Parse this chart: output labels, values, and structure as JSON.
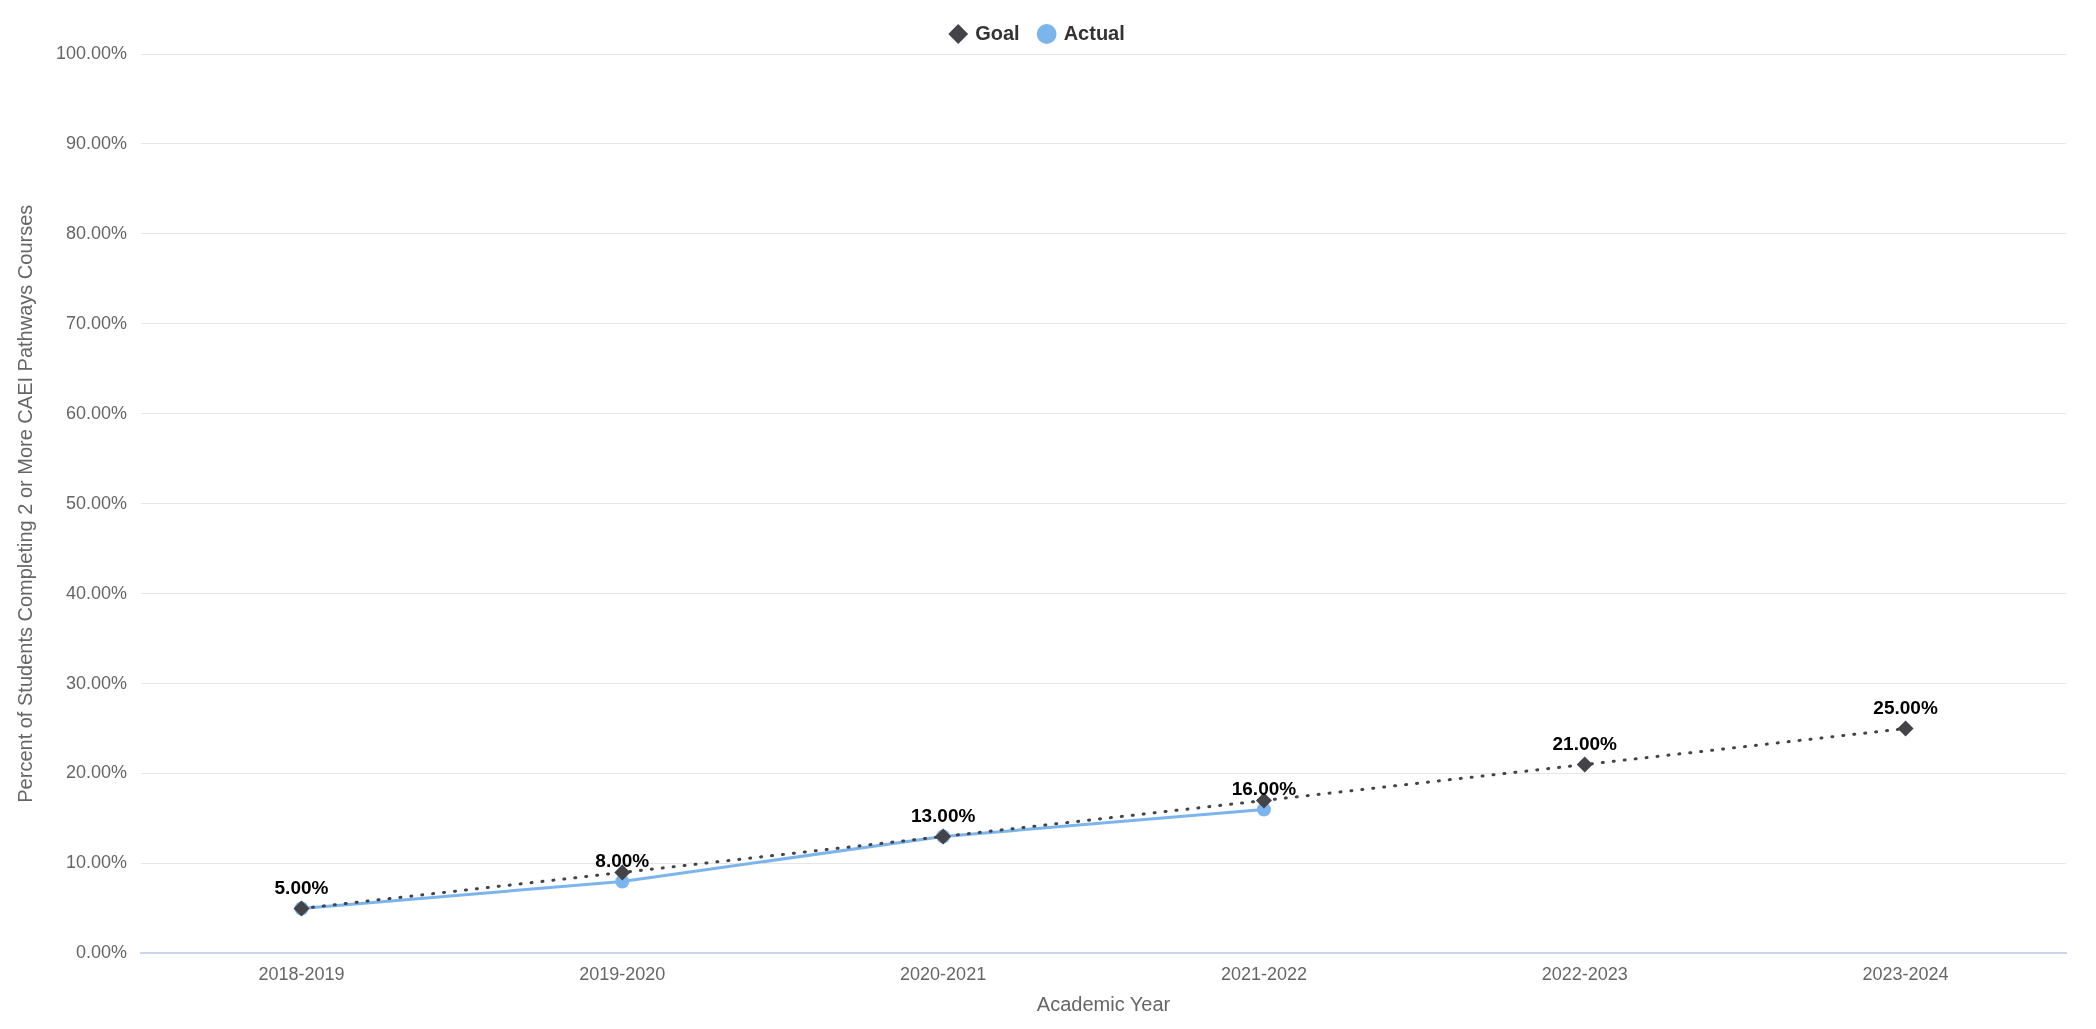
{
  "chart_data": {
    "type": "line",
    "xlabel": "Academic Year",
    "ylabel": "Percent of Students Completing 2 or More CAEI Pathways Courses",
    "categories": [
      "2018-2019",
      "2019-2020",
      "2020-2021",
      "2021-2022",
      "2022-2023",
      "2023-2024"
    ],
    "series": [
      {
        "name": "Actual",
        "color": "#7cb5ec",
        "marker": "circle",
        "line_style": "solid",
        "values": [
          5,
          8,
          13,
          16,
          null,
          null
        ],
        "value_labels": [
          "5.00%",
          "8.00%",
          "13.00%",
          "16.00%",
          null,
          null
        ]
      },
      {
        "name": "Goal",
        "color": "#434348",
        "marker": "diamond",
        "line_style": "dotted",
        "values": [
          5,
          9,
          13,
          17,
          21,
          25
        ],
        "value_labels": [
          null,
          null,
          null,
          null,
          "21.00%",
          "25.00%"
        ]
      }
    ],
    "ylim": [
      0,
      100
    ],
    "yticks": [
      {
        "value": 0,
        "label": "0.00%"
      },
      {
        "value": 10,
        "label": "10.00%"
      },
      {
        "value": 20,
        "label": "20.00%"
      },
      {
        "value": 30,
        "label": "30.00%"
      },
      {
        "value": 40,
        "label": "40.00%"
      },
      {
        "value": 50,
        "label": "50.00%"
      },
      {
        "value": 60,
        "label": "60.00%"
      },
      {
        "value": 70,
        "label": "70.00%"
      },
      {
        "value": 80,
        "label": "80.00%"
      },
      {
        "value": 90,
        "label": "90.00%"
      },
      {
        "value": 100,
        "label": "100.00%"
      }
    ],
    "grid": "y",
    "legend": "top"
  }
}
